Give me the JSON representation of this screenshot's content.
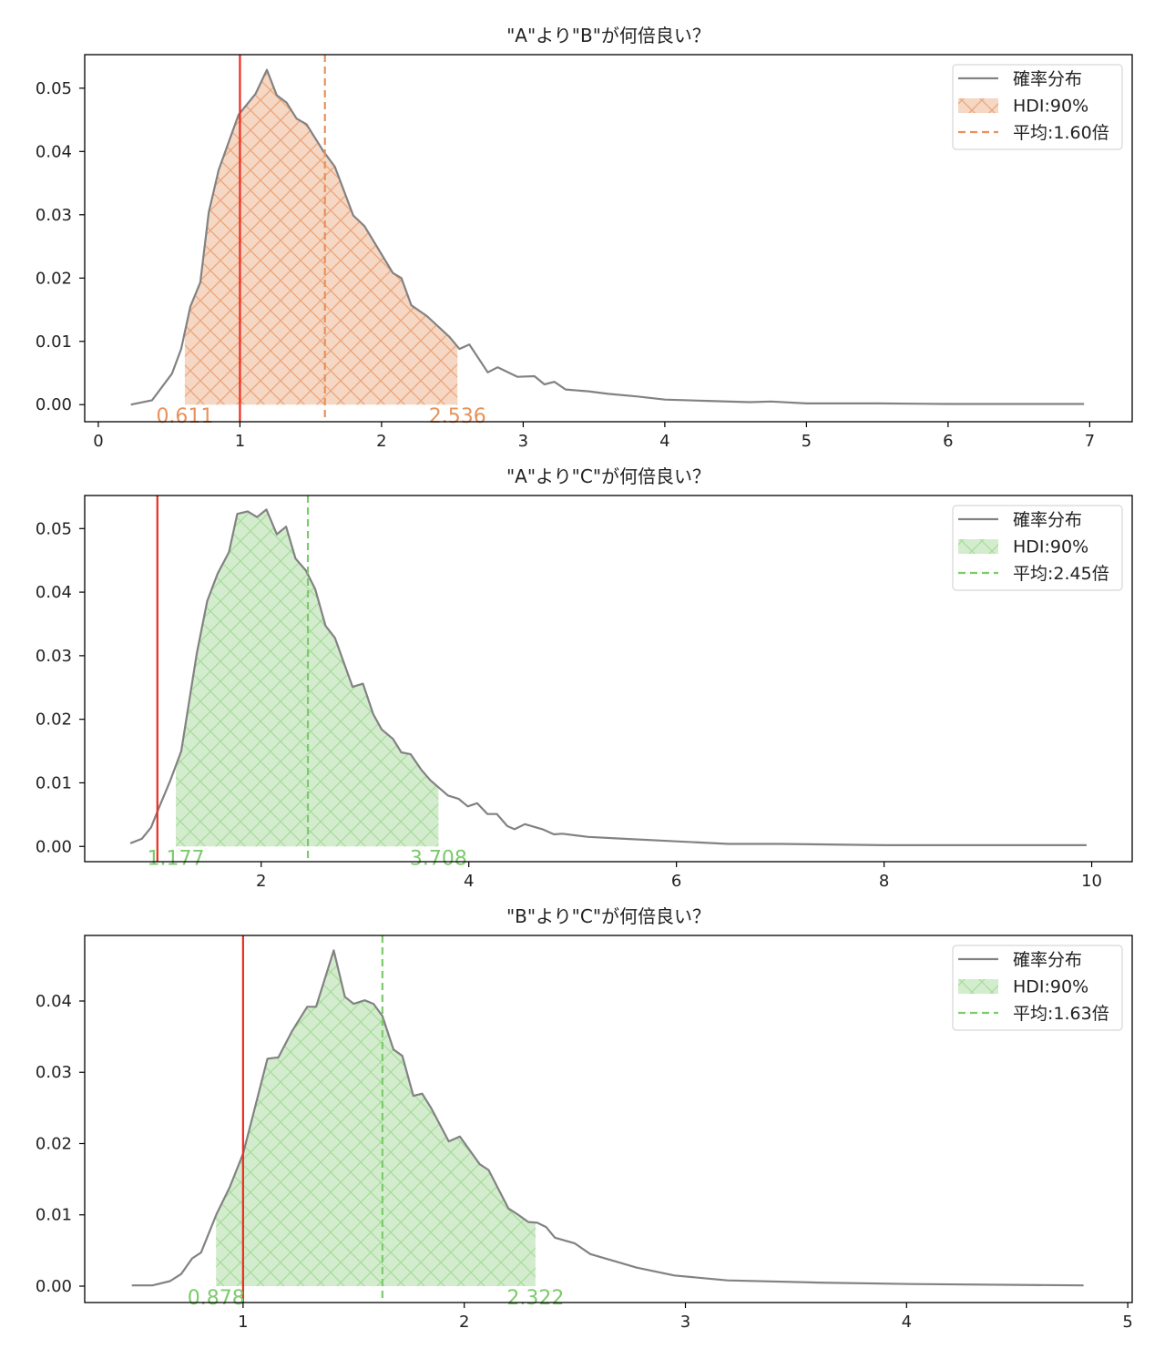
{
  "colors": {
    "line": "#828282",
    "reference": "#ee2b1e",
    "orange": "#e8915a",
    "orange_fill": "#f5d7c3",
    "green": "#7acb6a",
    "green_fill": "#d4ecce"
  },
  "chart_data": [
    {
      "type": "area",
      "title": "\"A\"より\"B\"が何倍良い？",
      "accent": "orange",
      "xlim": [
        -0.096,
        7.3
      ],
      "ylim": [
        -0.0027,
        0.0553
      ],
      "xticks": [
        "0",
        "1",
        "2",
        "3",
        "4",
        "5",
        "6",
        "7"
      ],
      "yticks": [
        "0.00",
        "0.01",
        "0.02",
        "0.03",
        "0.04",
        "0.05"
      ],
      "reference_line": 1,
      "mean": 1.6,
      "hdi": [
        0.611,
        2.536
      ],
      "hdi_labels": [
        "0.611",
        "2.536"
      ],
      "legend": {
        "placement": "top-right",
        "items": [
          "確率分布",
          "HDI:90%",
          "平均:1.60倍"
        ]
      },
      "x": [
        0.23,
        0.38,
        0.52,
        0.585,
        0.65,
        0.72,
        0.78,
        0.85,
        0.99,
        1.11,
        1.19,
        1.26,
        1.33,
        1.4,
        1.47,
        1.59,
        1.67,
        1.8,
        1.88,
        2.08,
        2.14,
        2.21,
        2.32,
        2.48,
        2.55,
        2.62,
        2.75,
        2.82,
        2.96,
        3.08,
        3.15,
        3.22,
        3.3,
        3.46,
        3.6,
        3.8,
        4.0,
        4.3,
        4.6,
        4.75,
        5.0,
        5.5,
        6.0,
        6.5,
        6.96
      ],
      "y": [
        0.0,
        0.0007,
        0.0049,
        0.0088,
        0.0155,
        0.0193,
        0.0304,
        0.0371,
        0.0458,
        0.0491,
        0.0529,
        0.0489,
        0.0477,
        0.0452,
        0.0443,
        0.04,
        0.0376,
        0.0299,
        0.0282,
        0.0208,
        0.02,
        0.0157,
        0.014,
        0.0107,
        0.0088,
        0.0095,
        0.0051,
        0.0059,
        0.0044,
        0.0045,
        0.0032,
        0.0036,
        0.0024,
        0.0021,
        0.0017,
        0.0013,
        0.0008,
        0.0006,
        0.0004,
        0.0005,
        0.0002,
        0.0002,
        0.0001,
        0.0001,
        0.0001
      ]
    },
    {
      "type": "area",
      "title": "\"A\"より\"C\"が何倍良い？",
      "accent": "green",
      "xlim": [
        0.3,
        10.39
      ],
      "ylim": [
        -0.0024,
        0.0552
      ],
      "xticks": [
        "2",
        "4",
        "6",
        "8",
        "10"
      ],
      "yticks": [
        "0.00",
        "0.01",
        "0.02",
        "0.03",
        "0.04",
        "0.05"
      ],
      "reference_line": 1,
      "mean": 2.45,
      "hdi": [
        1.177,
        3.708
      ],
      "hdi_labels": [
        "1.177",
        "3.708"
      ],
      "legend": {
        "placement": "top-right",
        "items": [
          "確率分布",
          "HDI:90%",
          "平均:2.45倍"
        ]
      },
      "x": [
        0.74,
        0.85,
        0.94,
        1.02,
        1.12,
        1.23,
        1.3,
        1.38,
        1.48,
        1.58,
        1.69,
        1.77,
        1.87,
        1.96,
        2.05,
        2.15,
        2.24,
        2.33,
        2.43,
        2.52,
        2.62,
        2.71,
        2.88,
        2.98,
        3.08,
        3.16,
        3.27,
        3.35,
        3.44,
        3.54,
        3.63,
        3.8,
        3.9,
        3.99,
        4.08,
        4.18,
        4.27,
        4.37,
        4.44,
        4.54,
        4.71,
        4.82,
        4.9,
        5.15,
        5.5,
        6.0,
        6.5,
        7.0,
        8.0,
        9.0,
        9.95
      ],
      "y": [
        0.0005,
        0.0012,
        0.003,
        0.0063,
        0.0102,
        0.015,
        0.0222,
        0.0304,
        0.0386,
        0.0429,
        0.0463,
        0.0523,
        0.0527,
        0.0518,
        0.053,
        0.0491,
        0.0503,
        0.0453,
        0.0434,
        0.0405,
        0.0347,
        0.0328,
        0.0251,
        0.0256,
        0.0208,
        0.0184,
        0.0169,
        0.0148,
        0.0145,
        0.0121,
        0.0104,
        0.008,
        0.0075,
        0.0063,
        0.0068,
        0.0051,
        0.0051,
        0.0032,
        0.0027,
        0.0035,
        0.0027,
        0.0019,
        0.002,
        0.0015,
        0.0012,
        0.0008,
        0.0004,
        0.0004,
        0.0002,
        0.0002,
        0.0002
      ]
    },
    {
      "type": "area",
      "title": "\"B\"より\"C\"が何倍良い？",
      "accent": "green",
      "xlim": [
        0.284,
        5.02
      ],
      "ylim": [
        -0.0023,
        0.0492
      ],
      "xticks": [
        "1",
        "2",
        "3",
        "4",
        "5"
      ],
      "yticks": [
        "0.00",
        "0.01",
        "0.02",
        "0.03",
        "0.04"
      ],
      "reference_line": 1,
      "mean": 1.63,
      "hdi": [
        0.878,
        2.322
      ],
      "hdi_labels": [
        "0.878",
        "2.322"
      ],
      "legend": {
        "placement": "top-right",
        "items": [
          "確率分布",
          "HDI:90%",
          "平均:1.63倍"
        ]
      },
      "x": [
        0.497,
        0.59,
        0.67,
        0.72,
        0.77,
        0.81,
        0.88,
        0.94,
        1.0,
        1.05,
        1.11,
        1.16,
        1.22,
        1.29,
        1.33,
        1.41,
        1.46,
        1.5,
        1.55,
        1.59,
        1.63,
        1.68,
        1.72,
        1.77,
        1.81,
        1.85,
        1.93,
        1.98,
        2.07,
        2.11,
        2.2,
        2.24,
        2.29,
        2.33,
        2.37,
        2.41,
        2.5,
        2.57,
        2.78,
        2.95,
        3.19,
        3.6,
        4.02,
        4.8
      ],
      "y": [
        0.0001,
        0.0001,
        0.0007,
        0.0017,
        0.0039,
        0.0047,
        0.0101,
        0.0139,
        0.0186,
        0.0246,
        0.0319,
        0.0321,
        0.0357,
        0.0392,
        0.0392,
        0.0471,
        0.0406,
        0.0396,
        0.0401,
        0.0396,
        0.0379,
        0.0332,
        0.0323,
        0.0267,
        0.027,
        0.025,
        0.0203,
        0.021,
        0.0171,
        0.0163,
        0.0109,
        0.0101,
        0.009,
        0.0089,
        0.0083,
        0.0068,
        0.006,
        0.0045,
        0.0026,
        0.0015,
        0.0008,
        0.0005,
        0.0003,
        0.0001
      ]
    }
  ]
}
